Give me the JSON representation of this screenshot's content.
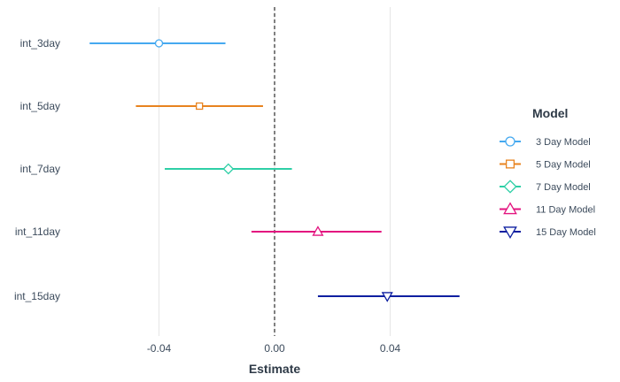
{
  "chart_data": {
    "type": "coefficient-plot",
    "xlabel": "Estimate",
    "xlim": [
      -0.0705,
      0.0705
    ],
    "x_ticks": [
      -0.04,
      0.0,
      0.04
    ],
    "x_tick_labels": [
      "-0.04",
      "0.00",
      "0.04"
    ],
    "reference_line": {
      "x": 0.0,
      "style": "dashed",
      "color": "#000000"
    },
    "grid": "vertical-major",
    "legend": {
      "title": "Model",
      "position": "right"
    },
    "categories": [
      "int_3day",
      "int_5day",
      "int_7day",
      "int_11day",
      "int_15day"
    ],
    "series": [
      {
        "name": "3 Day Model",
        "term": "int_3day",
        "estimate": -0.04,
        "low": -0.064,
        "high": -0.017,
        "color": "#45a9f0",
        "marker": "circle"
      },
      {
        "name": "5 Day Model",
        "term": "int_5day",
        "estimate": -0.026,
        "low": -0.048,
        "high": -0.004,
        "color": "#e8831f",
        "marker": "square"
      },
      {
        "name": "7 Day Model",
        "term": "int_7day",
        "estimate": -0.016,
        "low": -0.038,
        "high": 0.006,
        "color": "#2ecfa6",
        "marker": "diamond"
      },
      {
        "name": "11 Day Model",
        "term": "int_11day",
        "estimate": 0.015,
        "low": -0.008,
        "high": 0.037,
        "color": "#e3137f",
        "marker": "triangle-up"
      },
      {
        "name": "15 Day Model",
        "term": "int_15day",
        "estimate": 0.039,
        "low": 0.015,
        "high": 0.064,
        "color": "#0d1fa0",
        "marker": "triangle-down"
      }
    ]
  }
}
